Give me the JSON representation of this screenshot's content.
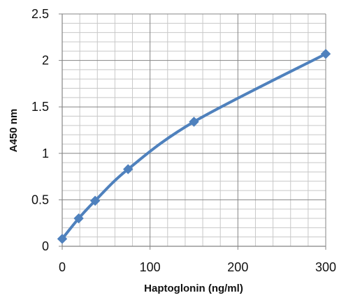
{
  "chart_data": {
    "type": "line",
    "title": "",
    "xlabel": "Haptoglonin (ng/ml)",
    "ylabel": "A450 nm",
    "xlim": [
      0,
      300
    ],
    "ylim": [
      0,
      2.5
    ],
    "x_ticks": [
      0,
      100,
      200,
      300
    ],
    "y_ticks": [
      0,
      0.5,
      1,
      1.5,
      2,
      2.5
    ],
    "x_tick_labels": [
      "0",
      "100",
      "200",
      "300"
    ],
    "y_tick_labels": [
      "0",
      "0.5",
      "1",
      "1.5",
      "2",
      "2.5"
    ],
    "grid": true,
    "marker": "diamond",
    "series": [
      {
        "color": "#4f81bd",
        "x": [
          0,
          18.75,
          37.5,
          75,
          150,
          300
        ],
        "y": [
          0.08,
          0.3,
          0.49,
          0.83,
          1.34,
          2.07
        ]
      }
    ]
  }
}
